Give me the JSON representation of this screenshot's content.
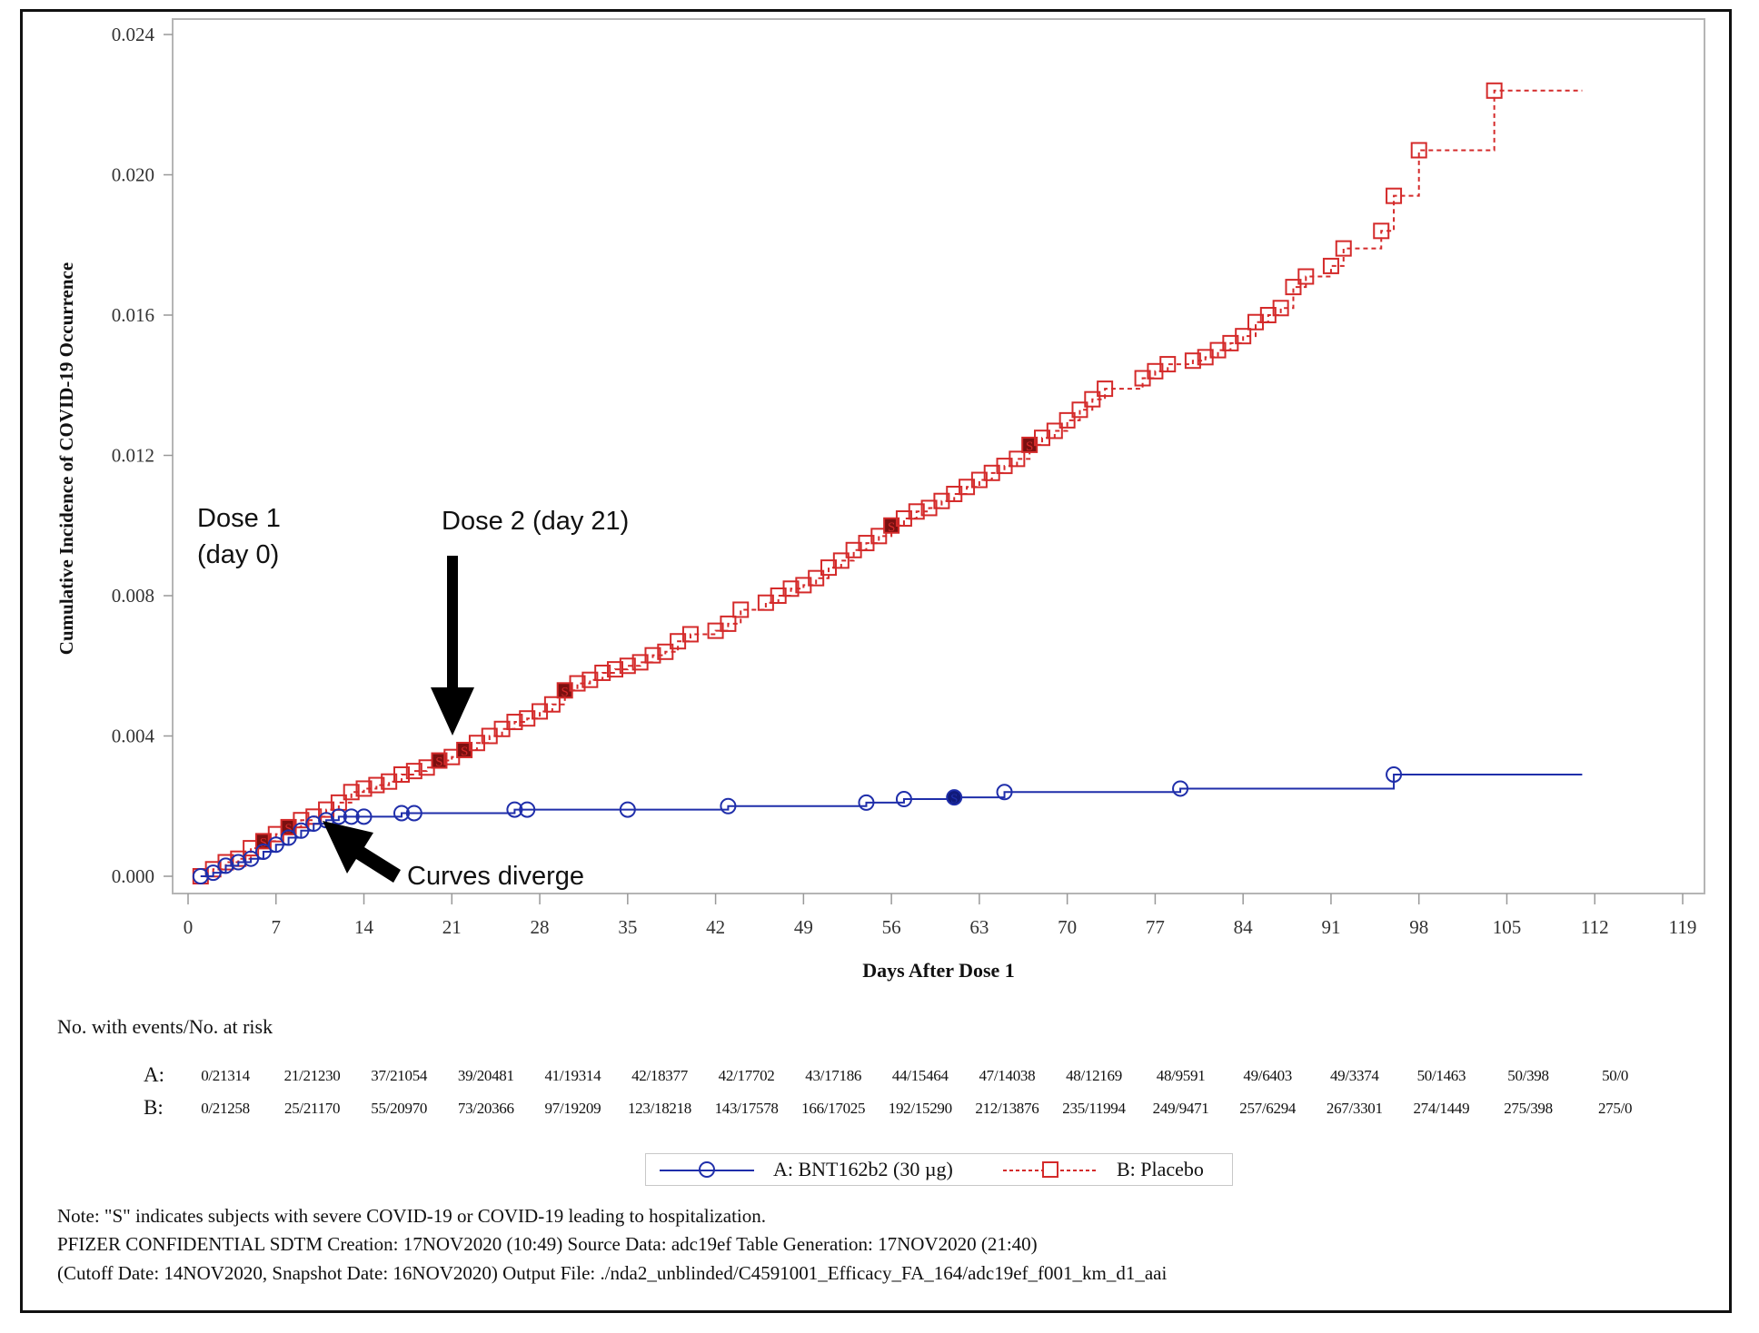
{
  "chart_data": {
    "type": "line",
    "title": "",
    "xlabel": "Days After Dose 1",
    "ylabel": "Cumulative Incidence of COVID-19 Occurrence",
    "xlim": [
      0,
      119
    ],
    "ylim": [
      0,
      0.024
    ],
    "x_ticks": [
      "0",
      "7",
      "14",
      "21",
      "28",
      "35",
      "42",
      "49",
      "56",
      "63",
      "70",
      "77",
      "84",
      "91",
      "98",
      "105",
      "112",
      "119"
    ],
    "y_ticks": [
      "0.000",
      "0.004",
      "0.008",
      "0.012",
      "0.016",
      "0.020",
      "0.024"
    ],
    "grid": false,
    "legend_position": "bottom",
    "step": true,
    "series": [
      {
        "name": "A: BNT162b2 (30 µg)",
        "color": "#1f2eaa",
        "marker": "circle",
        "line_style": "solid",
        "points": [
          [
            1,
            0.0
          ],
          [
            2,
            0.0001
          ],
          [
            3,
            0.0003
          ],
          [
            4,
            0.0004
          ],
          [
            5,
            0.0005
          ],
          [
            6,
            0.0007
          ],
          [
            7,
            0.0009
          ],
          [
            8,
            0.0011
          ],
          [
            9,
            0.0013
          ],
          [
            10,
            0.0015
          ],
          [
            11,
            0.0016
          ],
          [
            12,
            0.0017
          ],
          [
            13,
            0.0017
          ],
          [
            14,
            0.0017
          ],
          [
            17,
            0.0018
          ],
          [
            18,
            0.0018
          ],
          [
            26,
            0.0019
          ],
          [
            27,
            0.0019
          ],
          [
            35,
            0.0019
          ],
          [
            43,
            0.002
          ],
          [
            54,
            0.0021
          ],
          [
            57,
            0.0022
          ],
          [
            61,
            0.00225
          ],
          [
            65,
            0.0024
          ],
          [
            79,
            0.0025
          ],
          [
            96,
            0.0029
          ]
        ],
        "end_x": 111,
        "severe_x": [
          61
        ]
      },
      {
        "name": "B: Placebo",
        "color": "#d42a2a",
        "marker": "square",
        "line_style": "dashed",
        "points": [
          [
            1,
            0.0
          ],
          [
            2,
            0.0002
          ],
          [
            3,
            0.0004
          ],
          [
            4,
            0.0005
          ],
          [
            5,
            0.0008
          ],
          [
            6,
            0.001
          ],
          [
            7,
            0.0012
          ],
          [
            8,
            0.0014
          ],
          [
            9,
            0.0016
          ],
          [
            10,
            0.0017
          ],
          [
            11,
            0.0019
          ],
          [
            12,
            0.0021
          ],
          [
            13,
            0.0024
          ],
          [
            14,
            0.0025
          ],
          [
            15,
            0.0026
          ],
          [
            16,
            0.0027
          ],
          [
            17,
            0.0029
          ],
          [
            18,
            0.003
          ],
          [
            19,
            0.0031
          ],
          [
            20,
            0.0033
          ],
          [
            21,
            0.0034
          ],
          [
            22,
            0.0036
          ],
          [
            23,
            0.0038
          ],
          [
            24,
            0.004
          ],
          [
            25,
            0.0042
          ],
          [
            26,
            0.0044
          ],
          [
            27,
            0.0045
          ],
          [
            28,
            0.0047
          ],
          [
            29,
            0.0049
          ],
          [
            30,
            0.0053
          ],
          [
            31,
            0.0055
          ],
          [
            32,
            0.0056
          ],
          [
            33,
            0.0058
          ],
          [
            34,
            0.0059
          ],
          [
            35,
            0.006
          ],
          [
            36,
            0.0061
          ],
          [
            37,
            0.0063
          ],
          [
            38,
            0.0064
          ],
          [
            39,
            0.0067
          ],
          [
            40,
            0.0069
          ],
          [
            42,
            0.007
          ],
          [
            43,
            0.0072
          ],
          [
            44,
            0.0076
          ],
          [
            46,
            0.0078
          ],
          [
            47,
            0.008
          ],
          [
            48,
            0.0082
          ],
          [
            49,
            0.0083
          ],
          [
            50,
            0.0085
          ],
          [
            51,
            0.0088
          ],
          [
            52,
            0.009
          ],
          [
            53,
            0.0093
          ],
          [
            54,
            0.0095
          ],
          [
            55,
            0.0097
          ],
          [
            56,
            0.01
          ],
          [
            57,
            0.0102
          ],
          [
            58,
            0.0104
          ],
          [
            59,
            0.0105
          ],
          [
            60,
            0.0107
          ],
          [
            61,
            0.0109
          ],
          [
            62,
            0.0111
          ],
          [
            63,
            0.0113
          ],
          [
            64,
            0.0115
          ],
          [
            65,
            0.0117
          ],
          [
            66,
            0.0119
          ],
          [
            67,
            0.0123
          ],
          [
            68,
            0.0125
          ],
          [
            69,
            0.0127
          ],
          [
            70,
            0.013
          ],
          [
            71,
            0.0133
          ],
          [
            72,
            0.0136
          ],
          [
            73,
            0.0139
          ],
          [
            76,
            0.0142
          ],
          [
            77,
            0.0144
          ],
          [
            78,
            0.0146
          ],
          [
            80,
            0.0147
          ],
          [
            81,
            0.0148
          ],
          [
            82,
            0.015
          ],
          [
            83,
            0.0152
          ],
          [
            84,
            0.0154
          ],
          [
            85,
            0.0158
          ],
          [
            86,
            0.016
          ],
          [
            87,
            0.0162
          ],
          [
            88,
            0.0168
          ],
          [
            89,
            0.0171
          ],
          [
            91,
            0.0174
          ],
          [
            92,
            0.0179
          ],
          [
            95,
            0.0184
          ],
          [
            96,
            0.0194
          ],
          [
            98,
            0.0207
          ],
          [
            104,
            0.0224
          ]
        ],
        "end_x": 111,
        "severe_x": [
          6,
          8,
          20,
          22,
          30,
          56,
          67
        ]
      }
    ],
    "annotations": [
      {
        "text_line1": "Dose 1",
        "text_line2": "(day 0)"
      },
      {
        "text": "Dose 2 (day 21)"
      },
      {
        "text": "Curves diverge"
      }
    ]
  },
  "risk_table": {
    "header": "No. with events/No. at risk",
    "rows": [
      {
        "label": "A:",
        "values": [
          "0/21314",
          "21/21230",
          "37/21054",
          "39/20481",
          "41/19314",
          "42/18377",
          "42/17702",
          "43/17186",
          "44/15464",
          "47/14038",
          "48/12169",
          "48/9591",
          "49/6403",
          "49/3374",
          "50/1463",
          "50/398",
          "50/0"
        ]
      },
      {
        "label": "B:",
        "values": [
          "0/21258",
          "25/21170",
          "55/20970",
          "73/20366",
          "97/19209",
          "123/18218",
          "143/17578",
          "166/17025",
          "192/15290",
          "212/13876",
          "235/11994",
          "249/9471",
          "257/6294",
          "267/3301",
          "274/1449",
          "275/398",
          "275/0"
        ]
      }
    ]
  },
  "legend": {
    "a_label": "A: BNT162b2 (30 µg)",
    "b_label": "B: Placebo"
  },
  "notes": {
    "line1": "Note: \"S\" indicates subjects with severe COVID-19 or COVID-19 leading to hospitalization.",
    "line2": "PFIZER CONFIDENTIAL  SDTM Creation: 17NOV2020 (10:49)  Source Data: adc19ef  Table Generation: 17NOV2020 (21:40)",
    "line3": "(Cutoff Date: 14NOV2020, Snapshot Date: 16NOV2020) Output File: ./nda2_unblinded/C4591001_Efficacy_FA_164/adc19ef_f001_km_d1_aai"
  }
}
